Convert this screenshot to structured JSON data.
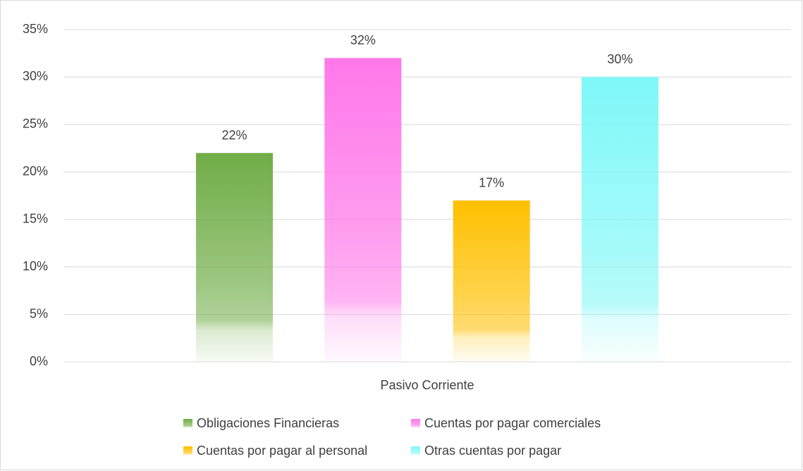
{
  "chart_data": {
    "type": "bar",
    "categories": [
      "Pasivo Corriente"
    ],
    "series": [
      {
        "name": "Obligaciones Financieras",
        "color": "#70ad47",
        "values": [
          22
        ],
        "value_labels": [
          "22%"
        ]
      },
      {
        "name": "Cuentas por pagar comerciales",
        "color": "#ff77e9",
        "values": [
          32
        ],
        "value_labels": [
          "32%"
        ]
      },
      {
        "name": "Cuentas por pagar al personal",
        "color": "#ffc000",
        "values": [
          17
        ],
        "value_labels": [
          "17%"
        ]
      },
      {
        "name": "Otras cuentas por pagar",
        "color": "#7ff8f8",
        "values": [
          30
        ],
        "value_labels": [
          "30%"
        ]
      }
    ],
    "ylim": [
      0,
      35
    ],
    "yticks": [
      {
        "value": 0,
        "label": "0%"
      },
      {
        "value": 5,
        "label": "5%"
      },
      {
        "value": 10,
        "label": "10%"
      },
      {
        "value": 15,
        "label": "15%"
      },
      {
        "value": 20,
        "label": "20%"
      },
      {
        "value": 25,
        "label": "25%"
      },
      {
        "value": 30,
        "label": "30%"
      },
      {
        "value": 35,
        "label": "35%"
      }
    ],
    "grid": true,
    "legend": "bottom"
  }
}
